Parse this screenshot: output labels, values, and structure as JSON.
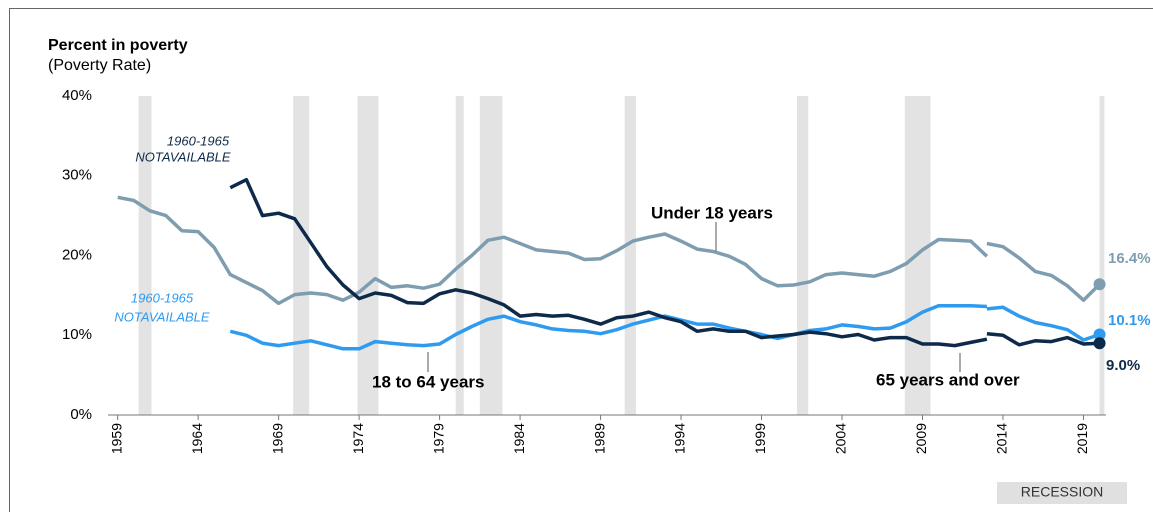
{
  "chart_data": {
    "type": "line",
    "title": "Percent in poverty",
    "subtitle": "(Poverty Rate)",
    "xlim": [
      1958.4,
      2020.4
    ],
    "ylim": [
      0,
      40
    ],
    "xticks": [
      1959,
      1964,
      1969,
      1974,
      1979,
      1984,
      1989,
      1994,
      1999,
      2004,
      2009,
      2014,
      2019
    ],
    "yticks": [
      {
        "value": 0,
        "label": "0%"
      },
      {
        "value": 10,
        "label": "10%"
      },
      {
        "value": 20,
        "label": "20%"
      },
      {
        "value": 30,
        "label": "30%"
      },
      {
        "value": 40,
        "label": "40%"
      }
    ],
    "recessions": [
      [
        1960.3,
        1961.1
      ],
      [
        1969.9,
        1970.9
      ],
      [
        1973.9,
        1975.2
      ],
      [
        1980.0,
        1980.5
      ],
      [
        1981.5,
        1982.9
      ],
      [
        1990.5,
        1991.2
      ],
      [
        2001.2,
        2001.9
      ],
      [
        2007.9,
        2009.5
      ],
      [
        2020.0,
        2020.3
      ]
    ],
    "recession_label": "RECESSION",
    "annotations": [
      "1960-1965",
      "NOTAVAILABLE",
      "1960-1965",
      "NOTAVAILABLE"
    ],
    "series": [
      {
        "name": "Under 18 years",
        "color": "#7f9db0",
        "x": [
          1959,
          1960,
          1961,
          1962,
          1963,
          1964,
          1965,
          1966,
          1967,
          1968,
          1969,
          1970,
          1971,
          1972,
          1973,
          1974,
          1975,
          1976,
          1977,
          1978,
          1979,
          1980,
          1981,
          1982,
          1983,
          1984,
          1985,
          1986,
          1987,
          1988,
          1989,
          1990,
          1991,
          1992,
          1993,
          1994,
          1995,
          1996,
          1997,
          1998,
          1999,
          2000,
          2001,
          2002,
          2003,
          2004,
          2005,
          2006,
          2007,
          2008,
          2009,
          2010,
          2011,
          2012,
          2013,
          2013,
          2013,
          2014,
          2015,
          2016,
          2017,
          2018,
          2019,
          2020
        ],
        "values": [
          27.3,
          26.9,
          25.6,
          25.0,
          23.1,
          23.0,
          21.0,
          17.6,
          16.6,
          15.6,
          14.0,
          15.1,
          15.3,
          15.1,
          14.4,
          15.4,
          17.1,
          16.0,
          16.2,
          15.9,
          16.4,
          18.3,
          20.0,
          21.9,
          22.3,
          21.5,
          20.7,
          20.5,
          20.3,
          19.5,
          19.6,
          20.6,
          21.8,
          22.3,
          22.7,
          21.8,
          20.8,
          20.5,
          19.9,
          18.9,
          17.1,
          16.2,
          16.3,
          16.7,
          17.6,
          17.8,
          17.6,
          17.4,
          18.0,
          19.0,
          20.7,
          22.0,
          21.9,
          21.8,
          19.9,
          null,
          21.5,
          21.1,
          19.7,
          18.0,
          17.5,
          16.2,
          14.4,
          16.4
        ],
        "value_labels": [
          null,
          null,
          null,
          null,
          null,
          null,
          null,
          null,
          null,
          null,
          null,
          null,
          null,
          null,
          null,
          null,
          null,
          null,
          null,
          null,
          null,
          null,
          null,
          null,
          null,
          null,
          null,
          null,
          null,
          null,
          null,
          null,
          null,
          null,
          null,
          null,
          null,
          null,
          null,
          null,
          null,
          null,
          null,
          null,
          null,
          null,
          null,
          null,
          null,
          null,
          null,
          null,
          null,
          null,
          null,
          null,
          null,
          null,
          null,
          null,
          null,
          null,
          null,
          "16.4%"
        ]
      },
      {
        "name": "18 to 64 years",
        "color": "#2e9bf0",
        "x": [
          1966,
          1967,
          1968,
          1969,
          1970,
          1971,
          1972,
          1973,
          1974,
          1975,
          1976,
          1977,
          1978,
          1979,
          1980,
          1981,
          1982,
          1983,
          1984,
          1985,
          1986,
          1987,
          1988,
          1989,
          1990,
          1991,
          1992,
          1993,
          1994,
          1995,
          1996,
          1997,
          1998,
          1999,
          2000,
          2001,
          2002,
          2003,
          2004,
          2005,
          2006,
          2007,
          2008,
          2009,
          2010,
          2011,
          2012,
          2013,
          2013,
          2013,
          2014,
          2015,
          2016,
          2017,
          2018,
          2019,
          2020
        ],
        "values": [
          10.5,
          10.0,
          9.0,
          8.7,
          9.0,
          9.3,
          8.8,
          8.3,
          8.3,
          9.2,
          9.0,
          8.8,
          8.7,
          8.9,
          10.1,
          11.1,
          12.0,
          12.4,
          11.7,
          11.3,
          10.8,
          10.6,
          10.5,
          10.2,
          10.7,
          11.4,
          11.9,
          12.4,
          11.9,
          11.4,
          11.4,
          10.9,
          10.5,
          10.1,
          9.6,
          10.1,
          10.6,
          10.8,
          11.3,
          11.1,
          10.8,
          10.9,
          11.7,
          12.9,
          13.7,
          13.7,
          13.7,
          13.6,
          null,
          13.3,
          13.5,
          12.4,
          11.6,
          11.2,
          10.7,
          9.4,
          10.1
        ],
        "value_labels": [
          null,
          null,
          null,
          null,
          null,
          null,
          null,
          null,
          null,
          null,
          null,
          null,
          null,
          null,
          null,
          null,
          null,
          null,
          null,
          null,
          null,
          null,
          null,
          null,
          null,
          null,
          null,
          null,
          null,
          null,
          null,
          null,
          null,
          null,
          null,
          null,
          null,
          null,
          null,
          null,
          null,
          null,
          null,
          null,
          null,
          null,
          null,
          null,
          null,
          null,
          null,
          null,
          null,
          null,
          null,
          null,
          "10.1%"
        ]
      },
      {
        "name": "65 years and over",
        "color": "#0e2a4a",
        "x": [
          1966,
          1967,
          1968,
          1969,
          1970,
          1971,
          1972,
          1973,
          1974,
          1975,
          1976,
          1977,
          1978,
          1979,
          1980,
          1981,
          1982,
          1983,
          1984,
          1985,
          1986,
          1987,
          1988,
          1989,
          1990,
          1991,
          1992,
          1993,
          1994,
          1995,
          1996,
          1997,
          1998,
          1999,
          2000,
          2001,
          2002,
          2003,
          2004,
          2005,
          2006,
          2007,
          2008,
          2009,
          2010,
          2011,
          2012,
          2013,
          2013,
          2013,
          2014,
          2015,
          2016,
          2017,
          2018,
          2019,
          2020
        ],
        "values": [
          28.5,
          29.5,
          25.0,
          25.3,
          24.6,
          21.6,
          18.6,
          16.3,
          14.6,
          15.3,
          15.0,
          14.1,
          14.0,
          15.2,
          15.7,
          15.3,
          14.6,
          13.8,
          12.4,
          12.6,
          12.4,
          12.5,
          12.0,
          11.4,
          12.2,
          12.4,
          12.9,
          12.2,
          11.7,
          10.5,
          10.8,
          10.5,
          10.5,
          9.7,
          9.9,
          10.1,
          10.4,
          10.2,
          9.8,
          10.1,
          9.4,
          9.7,
          9.7,
          8.9,
          8.9,
          8.7,
          9.1,
          9.5,
          null,
          10.2,
          10.0,
          8.8,
          9.3,
          9.2,
          9.7,
          8.9,
          9.0
        ],
        "value_labels": [
          null,
          null,
          null,
          null,
          null,
          null,
          null,
          null,
          null,
          null,
          null,
          null,
          null,
          null,
          null,
          null,
          null,
          null,
          null,
          null,
          null,
          null,
          null,
          null,
          null,
          null,
          null,
          null,
          null,
          null,
          null,
          null,
          null,
          null,
          null,
          null,
          null,
          null,
          null,
          null,
          null,
          null,
          null,
          null,
          null,
          null,
          null,
          null,
          null,
          null,
          null,
          null,
          null,
          null,
          null,
          null,
          "9.0%"
        ]
      }
    ]
  }
}
